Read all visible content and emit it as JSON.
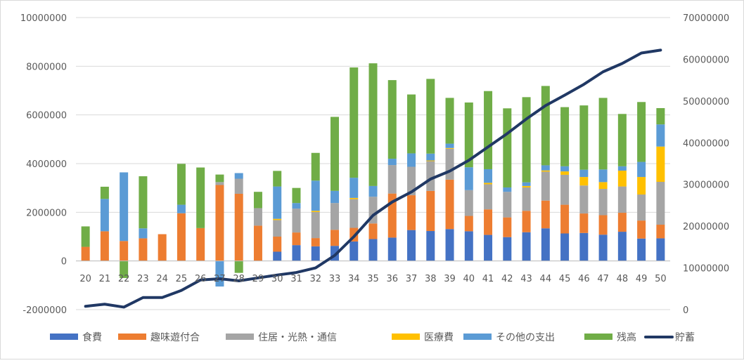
{
  "chart_data": {
    "type": "bar",
    "stacked": true,
    "grid": true,
    "legend_position": "bottom",
    "categories": [
      "20",
      "21",
      "22",
      "23",
      "24",
      "25",
      "26",
      "27",
      "28",
      "29",
      "30",
      "31",
      "32",
      "33",
      "34",
      "35",
      "36",
      "37",
      "38",
      "39",
      "40",
      "41",
      "42",
      "43",
      "44",
      "45",
      "46",
      "47",
      "48",
      "49",
      "50"
    ],
    "ylim": [
      -2000000,
      10000000
    ],
    "y_ticks": [
      "10000000",
      "8000000",
      "6000000",
      "4000000",
      "2000000",
      "0",
      "-2000000"
    ],
    "y2lim": [
      0,
      70000000
    ],
    "y2_ticks": [
      "70000000",
      "60000000",
      "50000000",
      "40000000",
      "30000000",
      "20000000",
      "10000000",
      "0"
    ],
    "series": [
      {
        "name": "食費",
        "color": "#4472c4",
        "values": [
          0,
          0,
          0,
          0,
          0,
          0,
          0,
          0,
          0,
          0,
          380000,
          650000,
          600000,
          620000,
          800000,
          900000,
          960000,
          1270000,
          1230000,
          1310000,
          1220000,
          1070000,
          980000,
          1180000,
          1340000,
          1130000,
          1150000,
          1080000,
          1200000,
          920000,
          930000
        ]
      },
      {
        "name": "趣味遊付合",
        "color": "#ed7d31",
        "values": [
          580000,
          1220000,
          820000,
          930000,
          1100000,
          1960000,
          1350000,
          3120000,
          2760000,
          1450000,
          620000,
          520000,
          340000,
          660000,
          560000,
          640000,
          1810000,
          1430000,
          1650000,
          2030000,
          630000,
          1050000,
          810000,
          880000,
          1140000,
          1180000,
          800000,
          800000,
          780000,
          740000,
          560000
        ]
      },
      {
        "name": "住居・光熱・通信",
        "color": "#a5a5a5",
        "values": [
          0,
          0,
          0,
          0,
          0,
          0,
          0,
          120000,
          620000,
          720000,
          680000,
          980000,
          1070000,
          1100000,
          1180000,
          1100000,
          1170000,
          1170000,
          1220000,
          1270000,
          1060000,
          1030000,
          1050000,
          960000,
          1190000,
          1230000,
          1150000,
          1080000,
          1080000,
          1070000,
          1760000
        ]
      },
      {
        "name": "医療費",
        "color": "#ffc000",
        "values": [
          0,
          0,
          0,
          0,
          0,
          0,
          0,
          0,
          0,
          0,
          50000,
          0,
          50000,
          0,
          50000,
          0,
          0,
          0,
          30000,
          30000,
          0,
          60000,
          0,
          60000,
          50000,
          140000,
          350000,
          280000,
          650000,
          720000,
          1450000
        ]
      },
      {
        "name": "その他の支出",
        "color": "#5b9bd5",
        "values": [
          0,
          1330000,
          2820000,
          410000,
          0,
          350000,
          0,
          -1050000,
          230000,
          0,
          1330000,
          230000,
          1240000,
          500000,
          830000,
          440000,
          260000,
          550000,
          280000,
          180000,
          940000,
          560000,
          180000,
          150000,
          210000,
          210000,
          300000,
          520000,
          180000,
          620000,
          910000
        ]
      },
      {
        "name": "残高",
        "color": "#70ad47",
        "values": [
          840000,
          500000,
          -700000,
          2140000,
          0,
          1680000,
          2490000,
          310000,
          -490000,
          670000,
          640000,
          620000,
          1140000,
          3040000,
          4530000,
          5040000,
          3230000,
          2420000,
          3070000,
          1880000,
          2660000,
          3210000,
          3250000,
          3500000,
          3260000,
          2430000,
          2640000,
          2940000,
          2150000,
          2460000,
          670000
        ]
      }
    ],
    "line_series": {
      "name": "貯蓄",
      "color": "#203864",
      "axis": "secondary",
      "values": [
        800000,
        1300000,
        600000,
        2900000,
        2900000,
        4600000,
        7100000,
        7400000,
        6900000,
        7600000,
        8300000,
        8900000,
        10000000,
        13000000,
        17500000,
        22600000,
        25800000,
        28200000,
        31300000,
        33200000,
        35800000,
        39000000,
        42200000,
        45700000,
        48900000,
        51400000,
        54000000,
        57000000,
        59000000,
        61500000,
        62200000
      ]
    }
  }
}
